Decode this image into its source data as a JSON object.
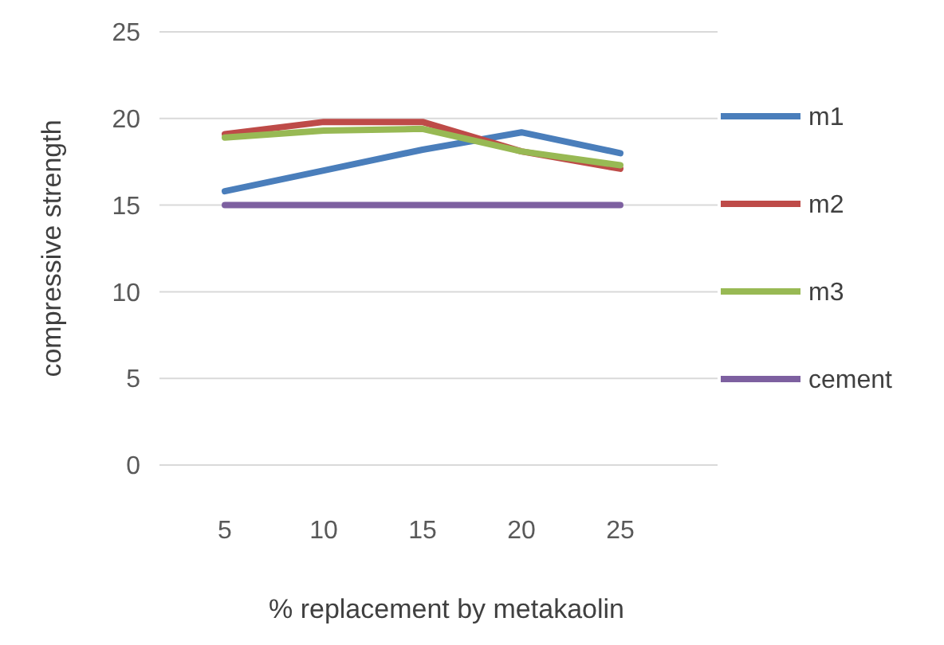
{
  "chart_data": {
    "type": "line",
    "xlabel": "% replacement by metakaolin",
    "ylabel": "compressive strength",
    "categories": [
      "5",
      "10",
      "15",
      "20",
      "25"
    ],
    "series": [
      {
        "name": "m1",
        "color": "#4a7ebb",
        "values": [
          15.8,
          17.0,
          18.2,
          19.2,
          18.0
        ]
      },
      {
        "name": "m2",
        "color": "#be4b48",
        "values": [
          19.1,
          19.8,
          19.8,
          18.1,
          17.1
        ]
      },
      {
        "name": "m3",
        "color": "#98b954",
        "values": [
          18.9,
          19.3,
          19.4,
          18.1,
          17.3
        ]
      },
      {
        "name": "cement",
        "color": "#7d60a0",
        "values": [
          15,
          15,
          15,
          15,
          15
        ]
      }
    ],
    "ylim": [
      0,
      25
    ],
    "yticks": [
      0,
      5,
      10,
      15,
      20,
      25
    ],
    "grid": "y",
    "legend": "right",
    "marker": "none",
    "line_style": "solid"
  }
}
